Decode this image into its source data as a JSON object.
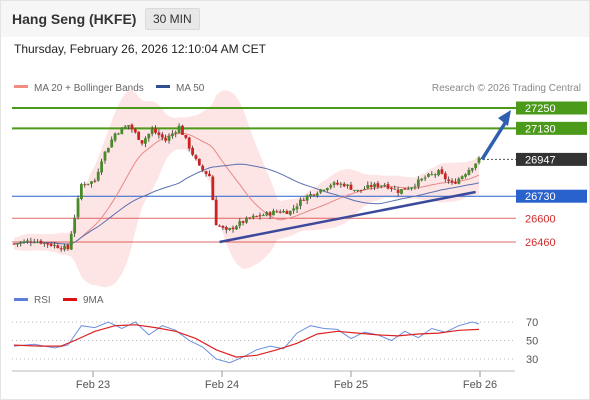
{
  "header": {
    "title": "Hang Seng (HKFE)",
    "timeframe": "30 MIN",
    "timestamp": "Thursday, February 26, 2026 12:10:04 AM CET"
  },
  "legend": {
    "ma20_label": "MA 20 + Bollinger Bands",
    "ma50_label": "MA 50",
    "credit": "Research © 2026 Trading Central"
  },
  "rsi_legend": {
    "rsi_label": "RSI",
    "ma_label": "9MA"
  },
  "colors": {
    "resistance": "#4c9a1a",
    "pivot": "#2962cc",
    "support": "#d22a2a",
    "last_price_tag": "#333333",
    "trendline": "#3b4a9a",
    "arrow": "#2f5fb0",
    "candle_up": "#4a8a2a",
    "candle_down": "#cc2222",
    "bollinger_fill": "#fde0e0",
    "ma20": "#e88888",
    "ma50": "#5a6fb0",
    "rsi": "#6c8fe0",
    "rsi_ma": "#dd2222"
  },
  "chart_data": [
    {
      "type": "candlestick",
      "title": "Hang Seng (HKFE)",
      "timeframe": "30 MIN",
      "x_ticks": [
        "Feb 23",
        "Feb 24",
        "Feb 25",
        "Feb 26"
      ],
      "ylim": [
        26220,
        27330
      ],
      "last_price": 26947,
      "levels": [
        {
          "value": 27250,
          "label": "27250",
          "kind": "resistance"
        },
        {
          "value": 27130,
          "label": "27130",
          "kind": "resistance"
        },
        {
          "value": 26947,
          "label": "26947",
          "kind": "last"
        },
        {
          "value": 26730,
          "label": "26730",
          "kind": "pivot"
        },
        {
          "value": 26600,
          "label": "26600",
          "kind": "support"
        },
        {
          "value": 26460,
          "label": "26460",
          "kind": "support"
        }
      ],
      "series": [
        {
          "name": "MA 20 + Bollinger Bands",
          "kind": "ma_bollinger"
        },
        {
          "name": "MA 50",
          "kind": "ma"
        }
      ],
      "close_path": [
        [
          0,
          26450
        ],
        [
          6,
          26470
        ],
        [
          12,
          26440
        ],
        [
          16,
          26420
        ],
        [
          20,
          26800
        ],
        [
          24,
          26820
        ],
        [
          26,
          26950
        ],
        [
          30,
          27100
        ],
        [
          34,
          27150
        ],
        [
          38,
          27050
        ],
        [
          41,
          27120
        ],
        [
          45,
          27060
        ],
        [
          49,
          27140
        ],
        [
          52,
          27020
        ],
        [
          55,
          26900
        ],
        [
          58,
          26850
        ],
        [
          60,
          26570
        ],
        [
          63,
          26520
        ],
        [
          66,
          26560
        ],
        [
          70,
          26600
        ],
        [
          74,
          26620
        ],
        [
          78,
          26640
        ],
        [
          82,
          26640
        ],
        [
          86,
          26720
        ],
        [
          90,
          26760
        ],
        [
          94,
          26800
        ],
        [
          98,
          26800
        ],
        [
          102,
          26760
        ],
        [
          106,
          26790
        ],
        [
          110,
          26800
        ],
        [
          114,
          26760
        ],
        [
          118,
          26790
        ],
        [
          122,
          26840
        ],
        [
          126,
          26870
        ],
        [
          130,
          26800
        ],
        [
          134,
          26870
        ],
        [
          138,
          26947
        ]
      ],
      "trend_support": {
        "from": [
          61,
          26460
        ],
        "to": [
          137,
          26755
        ]
      },
      "projection": {
        "from": 26947,
        "to": 27250
      }
    },
    {
      "type": "line",
      "title": "RSI",
      "yticks": [
        70,
        50,
        30
      ],
      "ylim": [
        20,
        80
      ],
      "x_ticks": [
        "Feb 23",
        "Feb 24",
        "Feb 25",
        "Feb 26"
      ],
      "series": [
        {
          "name": "RSI",
          "points": [
            [
              0,
              44
            ],
            [
              6,
              46
            ],
            [
              12,
              42
            ],
            [
              16,
              45
            ],
            [
              20,
              66
            ],
            [
              24,
              64
            ],
            [
              28,
              70
            ],
            [
              32,
              63
            ],
            [
              36,
              70
            ],
            [
              40,
              56
            ],
            [
              44,
              66
            ],
            [
              48,
              61
            ],
            [
              52,
              50
            ],
            [
              56,
              43
            ],
            [
              60,
              30
            ],
            [
              64,
              26
            ],
            [
              68,
              32
            ],
            [
              72,
              40
            ],
            [
              76,
              44
            ],
            [
              80,
              41
            ],
            [
              84,
              58
            ],
            [
              88,
              66
            ],
            [
              92,
              63
            ],
            [
              96,
              62
            ],
            [
              100,
              52
            ],
            [
              104,
              59
            ],
            [
              108,
              56
            ],
            [
              112,
              50
            ],
            [
              116,
              60
            ],
            [
              120,
              53
            ],
            [
              124,
              63
            ],
            [
              128,
              59
            ],
            [
              132,
              66
            ],
            [
              136,
              70
            ],
            [
              138,
              68
            ]
          ]
        },
        {
          "name": "9MA",
          "points": [
            [
              0,
              45
            ],
            [
              8,
              44
            ],
            [
              14,
              44
            ],
            [
              18,
              50
            ],
            [
              24,
              60
            ],
            [
              30,
              66
            ],
            [
              36,
              67
            ],
            [
              42,
              64
            ],
            [
              48,
              60
            ],
            [
              54,
              52
            ],
            [
              60,
              40
            ],
            [
              66,
              32
            ],
            [
              72,
              34
            ],
            [
              78,
              40
            ],
            [
              84,
              47
            ],
            [
              90,
              57
            ],
            [
              96,
              60
            ],
            [
              102,
              58
            ],
            [
              108,
              56
            ],
            [
              114,
              55
            ],
            [
              120,
              57
            ],
            [
              126,
              58
            ],
            [
              132,
              61
            ],
            [
              138,
              62
            ]
          ]
        }
      ]
    }
  ]
}
